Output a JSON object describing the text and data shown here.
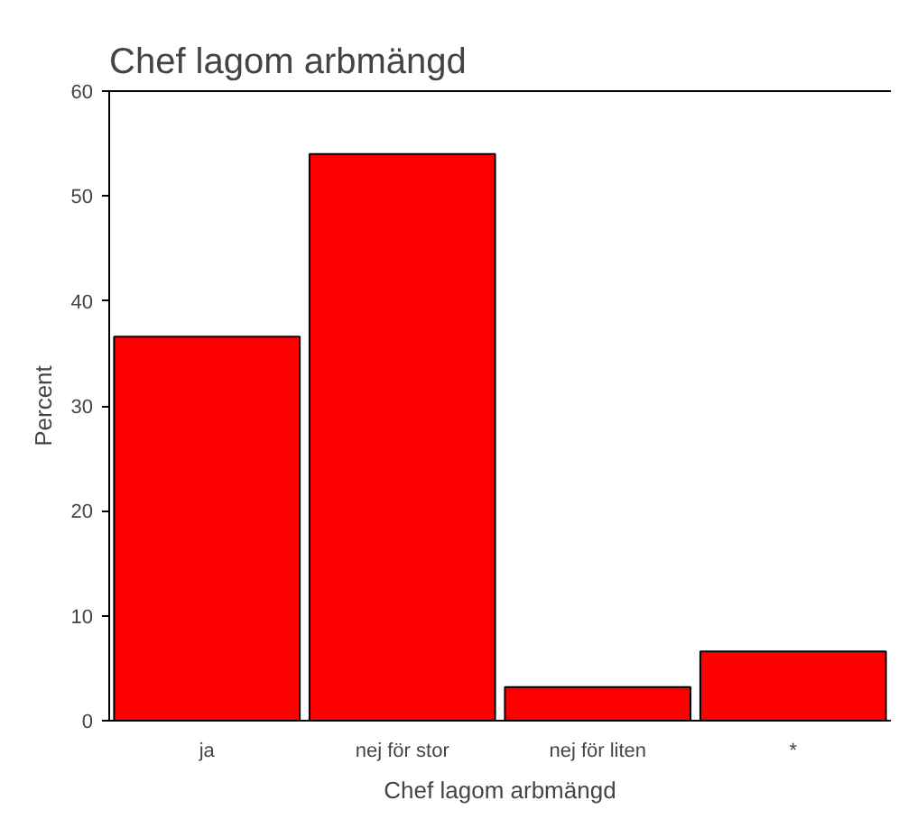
{
  "chart_data": {
    "type": "bar",
    "title": "Chef lagom arbmängd",
    "xlabel": "Chef lagom arbmängd",
    "ylabel": "Percent",
    "categories": [
      "ja",
      "nej för stor",
      "nej för liten",
      "*"
    ],
    "values": [
      36.6,
      54.0,
      3.2,
      6.6
    ],
    "color": "#ff0000",
    "ylim": [
      0,
      60
    ],
    "yticks": [
      0,
      10,
      20,
      30,
      40,
      50,
      60
    ],
    "grid": false
  }
}
